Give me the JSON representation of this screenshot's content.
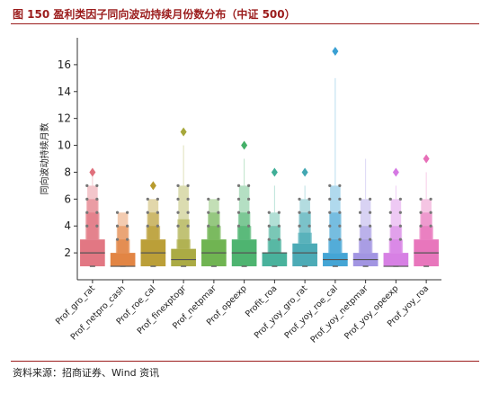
{
  "header": {
    "title": "图 150  盈利类因子同向波动持续月份数分布（中证 500）"
  },
  "footer": {
    "source": "资料来源：招商证券、Wind 资讯"
  },
  "chart_data": {
    "type": "boxen",
    "title": "",
    "xlabel": "",
    "ylabel": "同向波动持续月数",
    "ylim": [
      0,
      18
    ],
    "yticks": [
      2,
      4,
      6,
      8,
      10,
      12,
      14,
      16
    ],
    "grid": false,
    "legend": "none",
    "categories": [
      "Prof_gro_rat",
      "Prof_netpro_cash",
      "Prof_roe_cal",
      "Prof_finexptogr",
      "Prof_netpmar",
      "Prof_opeexp",
      "Profit_roa",
      "Prof_yoy_gro_rat",
      "Prof_yoy_roe_cal",
      "Prof_yoy_netpmar",
      "Prof_yoy_opeexp",
      "Prof_yoy_roa"
    ],
    "colors": [
      "#e0707c",
      "#e07e3a",
      "#b79a2d",
      "#a6a73a",
      "#68b049",
      "#44b068",
      "#3fae97",
      "#42a7b2",
      "#3aa0d3",
      "#9d8fe0",
      "#d579e3",
      "#e76fb8"
    ],
    "series": [
      {
        "name": "Prof_gro_rat",
        "min": 1,
        "q1": 1,
        "median": 2,
        "q3": 3,
        "outer": [
          5,
          6,
          7
        ],
        "max_line": 8,
        "outliers": [
          8
        ]
      },
      {
        "name": "Prof_netpro_cash",
        "min": 1,
        "q1": 1,
        "median": 1,
        "q3": 2,
        "outer": [
          3,
          4,
          5
        ],
        "max_line": 5,
        "outliers": []
      },
      {
        "name": "Prof_roe_cal",
        "min": 1,
        "q1": 1,
        "median": 2,
        "q3": 3,
        "outer": [
          4,
          5,
          6
        ],
        "max_line": 6,
        "outliers": [
          7
        ]
      },
      {
        "name": "Prof_finexptogr",
        "min": 1,
        "q1": 1,
        "median": 1.5,
        "q3": 2.3,
        "outer": [
          3,
          4.5,
          7
        ],
        "max_line": 10,
        "outliers": [
          11
        ]
      },
      {
        "name": "Prof_netpmar",
        "min": 1,
        "q1": 1,
        "median": 2,
        "q3": 3,
        "outer": [
          4,
          5,
          6
        ],
        "max_line": 6,
        "outliers": []
      },
      {
        "name": "Prof_opeexp",
        "min": 1,
        "q1": 1,
        "median": 2,
        "q3": 3,
        "outer": [
          4,
          5,
          7
        ],
        "max_line": 9,
        "outliers": [
          10
        ]
      },
      {
        "name": "Profit_roa",
        "min": 1,
        "q1": 1,
        "median": 2,
        "q3": 2,
        "outer": [
          3,
          4,
          5
        ],
        "max_line": 7,
        "outliers": [
          8
        ]
      },
      {
        "name": "Prof_yoy_gro_rat",
        "min": 1,
        "q1": 1,
        "median": 2,
        "q3": 2.7,
        "outer": [
          3.5,
          5,
          6
        ],
        "max_line": 7,
        "outliers": [
          8
        ]
      },
      {
        "name": "Prof_yoy_roe_cal",
        "min": 1,
        "q1": 1,
        "median": 1.5,
        "q3": 2,
        "outer": [
          3,
          5,
          7
        ],
        "max_line": 15,
        "outliers": [
          17
        ]
      },
      {
        "name": "Prof_yoy_netpmar",
        "min": 1,
        "q1": 1,
        "median": 1.5,
        "q3": 2,
        "outer": [
          3,
          4,
          6
        ],
        "max_line": 9,
        "outliers": []
      },
      {
        "name": "Prof_yoy_opeexp",
        "min": 1,
        "q1": 1,
        "median": 1,
        "q3": 2,
        "outer": [
          3,
          4,
          6
        ],
        "max_line": 7,
        "outliers": [
          8
        ]
      },
      {
        "name": "Prof_yoy_roa",
        "min": 1,
        "q1": 1,
        "median": 2,
        "q3": 3,
        "outer": [
          4,
          5,
          6
        ],
        "max_line": 8,
        "outliers": [
          9
        ]
      }
    ]
  }
}
